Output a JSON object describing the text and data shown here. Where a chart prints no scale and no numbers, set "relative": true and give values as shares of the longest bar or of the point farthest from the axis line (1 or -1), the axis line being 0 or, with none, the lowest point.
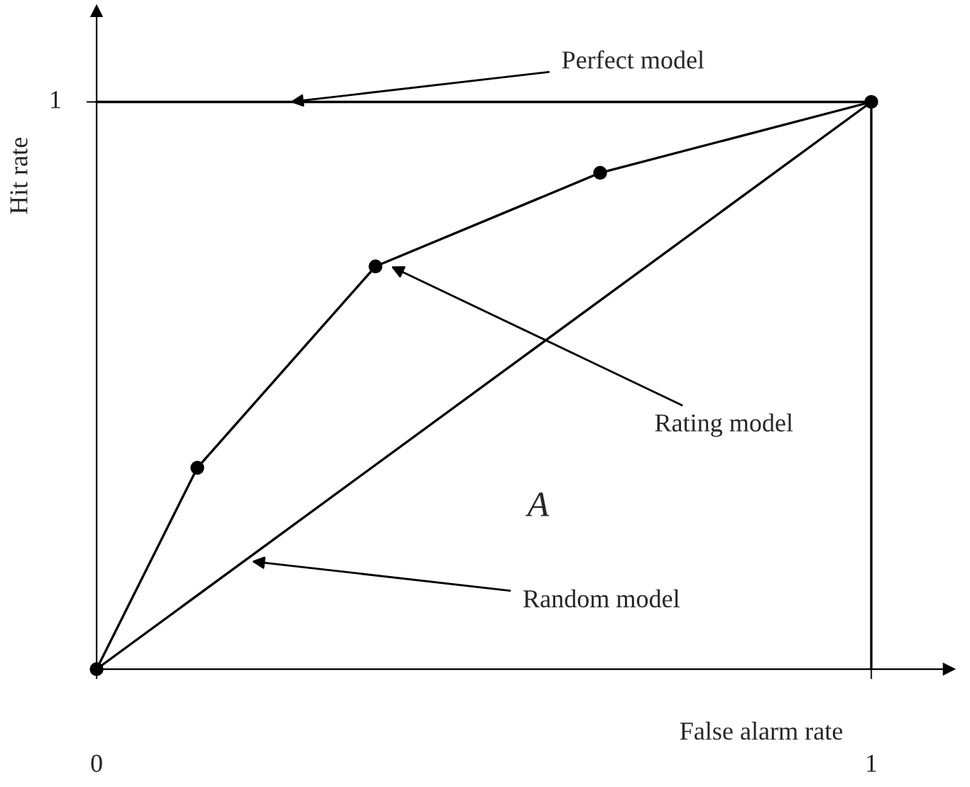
{
  "chart_data": {
    "type": "line",
    "xlabel": "False alarm rate",
    "ylabel": "Hit rate",
    "xlim": [
      0,
      1.1
    ],
    "relative": true,
    "xticks": [
      0,
      1
    ],
    "grid": false,
    "legend": false,
    "line_style": "solid",
    "series": [
      {
        "color": "#000000",
        "marker": "circle",
        "x": [
          0,
          0.13,
          0.36,
          0.65,
          1
        ],
        "values": [
          0,
          0.355,
          0.71,
          0.875,
          1
        ]
      },
      {
        "color": "#000000",
        "marker": "none",
        "x": [
          0,
          1
        ],
        "values": [
          0,
          1
        ]
      },
      {
        "color": "#000000",
        "marker": "none",
        "x": [
          0,
          1
        ],
        "values": [
          1,
          1
        ]
      },
      {
        "color": "#000000",
        "marker": "none",
        "x": [
          1,
          1
        ],
        "values": [
          1,
          0
        ]
      }
    ],
    "annotations": [
      {
        "text": "Perfect model",
        "x": 0.25,
        "y": 1
      },
      {
        "text": "Rating model",
        "x": 0.38,
        "y": 0.71
      },
      {
        "text": "Random model",
        "x": 0.2,
        "y": 0.19
      },
      "A",
      "1"
    ]
  }
}
